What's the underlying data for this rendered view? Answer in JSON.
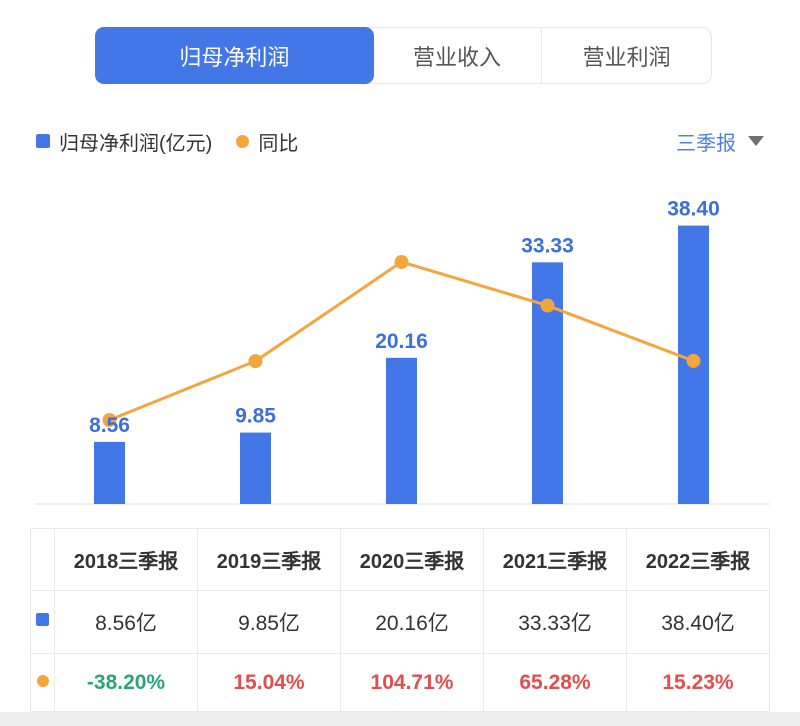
{
  "tabs": {
    "items": [
      {
        "label": "归母净利润",
        "active": true
      },
      {
        "label": "营业收入",
        "active": false
      },
      {
        "label": "营业利润",
        "active": false
      }
    ]
  },
  "legend": {
    "bar_label": "归母净利润(亿元)",
    "line_label": "同比"
  },
  "period_selector": {
    "value": "三季报",
    "icon": "caret-down-icon"
  },
  "chart_data": {
    "type": "bar",
    "categories": [
      "2018三季报",
      "2019三季报",
      "2020三季报",
      "2021三季报",
      "2022三季报"
    ],
    "series": [
      {
        "name": "归母净利润(亿元)",
        "type": "bar",
        "values": [
          8.56,
          9.85,
          20.16,
          33.33,
          38.4
        ],
        "labels": [
          "8.56",
          "9.85",
          "20.16",
          "33.33",
          "38.40"
        ],
        "color": "#4377e7",
        "label_color": "#3d6fdb"
      },
      {
        "name": "同比",
        "type": "line",
        "unit": "%",
        "values": [
          -38.2,
          15.04,
          104.71,
          65.28,
          15.23
        ],
        "color": "#f2a63d"
      }
    ],
    "title": "",
    "xlabel": "",
    "ylabel": "",
    "ylim_bar": [
      0,
      44
    ],
    "grid": false,
    "axis_labels_visible": false,
    "legend_position": "top-left",
    "data_labels": "bar-top"
  },
  "table": {
    "headers": [
      "2018三季报",
      "2019三季报",
      "2020三季报",
      "2021三季报",
      "2022三季报"
    ],
    "profit_row": {
      "marker": "blue-square",
      "values": [
        "8.56亿",
        "9.85亿",
        "20.16亿",
        "33.33亿",
        "38.40亿"
      ]
    },
    "growth_row": {
      "marker": "orange-dot",
      "values": [
        "-38.20%",
        "15.04%",
        "104.71%",
        "65.28%",
        "15.23%"
      ],
      "colors": [
        "#2ba47a",
        "#e54c4c",
        "#e54c4c",
        "#e54c4c",
        "#e54c4c"
      ]
    }
  },
  "colors": {
    "accent_blue": "#4377e7",
    "bar_label_blue": "#3d6fdb",
    "line_orange": "#f2a63d",
    "selector_blue": "#4f80e2",
    "up_red": "#e54c4c",
    "down_green": "#2ba47a",
    "axis_gray": "#efefef"
  }
}
